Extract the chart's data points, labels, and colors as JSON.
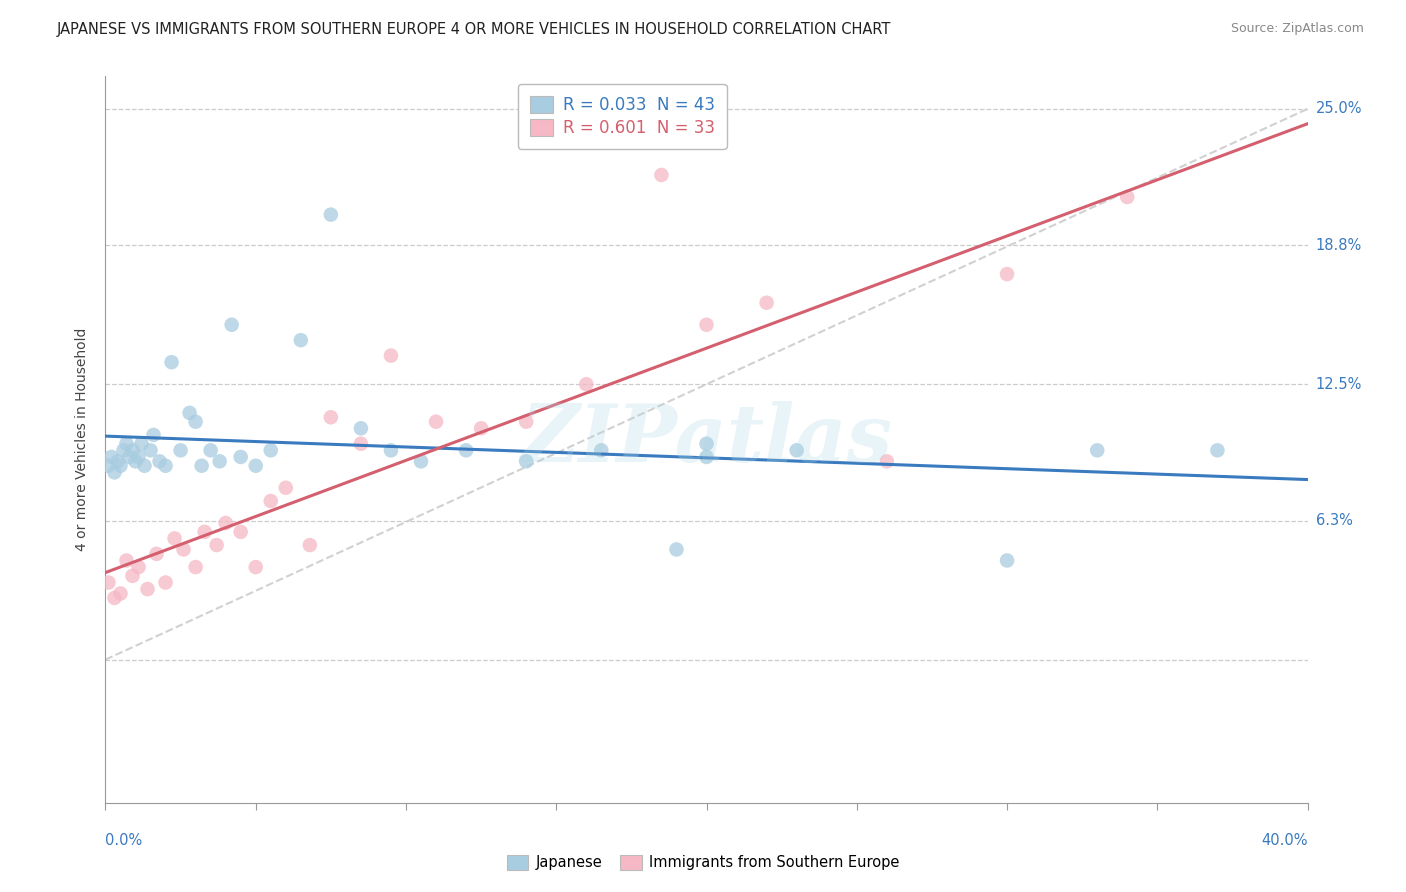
{
  "title": "JAPANESE VS IMMIGRANTS FROM SOUTHERN EUROPE 4 OR MORE VEHICLES IN HOUSEHOLD CORRELATION CHART",
  "source": "Source: ZipAtlas.com",
  "ylabel": "4 or more Vehicles in Household",
  "r_japanese": 0.033,
  "n_japanese": 43,
  "r_southern": 0.601,
  "n_southern": 33,
  "blue_scatter": "#a8cce0",
  "pink_scatter": "#f5b8c4",
  "blue_line": "#3a7abf",
  "pink_line": "#d45f6e",
  "diagonal_color": "#cccccc",
  "xmin": 0.0,
  "xmax": 40.0,
  "ymin": -6.5,
  "ymax": 26.5,
  "ytick_vals": [
    0.0,
    6.3,
    12.5,
    18.8,
    25.0
  ],
  "ytick_labels_right": [
    "",
    "6.3%",
    "12.5%",
    "18.8%",
    "25.0%"
  ],
  "xtick_vals": [
    0.0,
    5.0,
    10.0,
    15.0,
    20.0,
    25.0,
    30.0,
    35.0,
    40.0
  ],
  "watermark": "ZIPatlas",
  "japanese_x": [
    0.1,
    0.2,
    0.3,
    0.4,
    0.5,
    0.6,
    0.7,
    0.8,
    0.9,
    1.0,
    1.1,
    1.2,
    1.3,
    1.5,
    1.6,
    1.8,
    2.0,
    2.2,
    2.5,
    2.8,
    3.0,
    3.2,
    3.5,
    3.8,
    4.2,
    4.5,
    5.0,
    5.5,
    6.5,
    7.5,
    8.5,
    9.5,
    10.5,
    12.0,
    14.0,
    16.5,
    19.0,
    20.0,
    23.0,
    30.0,
    33.0,
    37.0,
    20.0
  ],
  "japanese_y": [
    8.8,
    9.2,
    8.5,
    9.0,
    8.8,
    9.5,
    9.8,
    9.2,
    9.5,
    9.0,
    9.2,
    9.8,
    8.8,
    9.5,
    10.2,
    9.0,
    8.8,
    13.5,
    9.5,
    11.2,
    10.8,
    8.8,
    9.5,
    9.0,
    15.2,
    9.2,
    8.8,
    9.5,
    14.5,
    20.2,
    10.5,
    9.5,
    9.0,
    9.5,
    9.0,
    9.5,
    5.0,
    9.8,
    9.5,
    4.5,
    9.5,
    9.5,
    9.2
  ],
  "southern_x": [
    0.1,
    0.3,
    0.5,
    0.7,
    0.9,
    1.1,
    1.4,
    1.7,
    2.0,
    2.3,
    2.6,
    3.0,
    3.3,
    3.7,
    4.0,
    4.5,
    5.0,
    5.5,
    6.0,
    6.8,
    7.5,
    8.5,
    9.5,
    11.0,
    12.5,
    14.0,
    16.0,
    18.5,
    20.0,
    22.0,
    26.0,
    30.0,
    34.0
  ],
  "southern_y": [
    3.5,
    2.8,
    3.0,
    4.5,
    3.8,
    4.2,
    3.2,
    4.8,
    3.5,
    5.5,
    5.0,
    4.2,
    5.8,
    5.2,
    6.2,
    5.8,
    4.2,
    7.2,
    7.8,
    5.2,
    11.0,
    9.8,
    13.8,
    10.8,
    10.5,
    10.8,
    12.5,
    22.0,
    15.2,
    16.2,
    9.0,
    17.5,
    21.0
  ]
}
